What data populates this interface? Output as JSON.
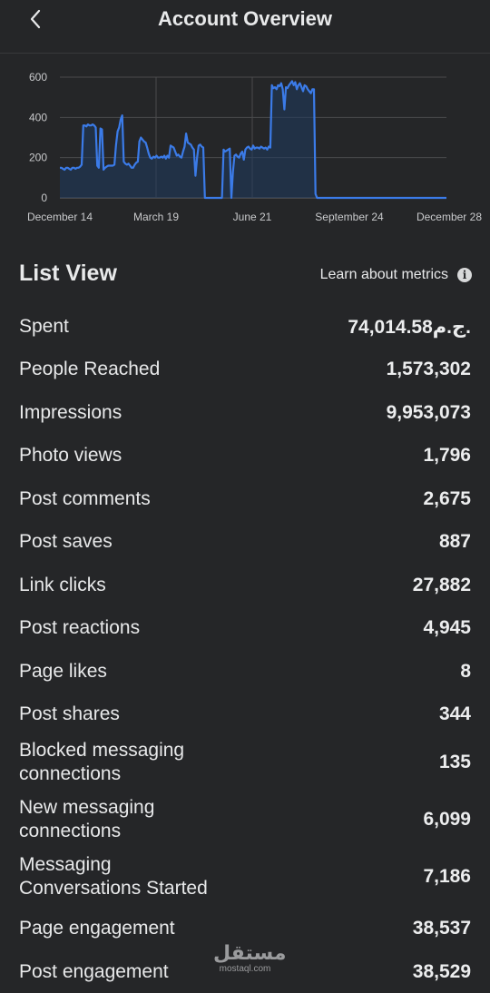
{
  "header": {
    "title": "Account Overview",
    "back_icon": "chevron-left-icon"
  },
  "chart_data": {
    "type": "area",
    "title": "",
    "xlabel": "",
    "ylabel": "",
    "x_tick_labels": [
      "December 14",
      "March 19",
      "June 21",
      "September 24",
      "December 28"
    ],
    "y_ticks": [
      "600",
      "400",
      "200",
      "0"
    ],
    "ylim": [
      0,
      600
    ],
    "grid": true,
    "line_color": "#3b7be8",
    "fill_color": "#1f3a5e",
    "series": [
      {
        "values": [
          150,
          150,
          145,
          140,
          150,
          150,
          145,
          140,
          150,
          150,
          145,
          150,
          150,
          155,
          165,
          360,
          360,
          355,
          365,
          360,
          360,
          365,
          360,
          350,
          160,
          150,
          345,
          340,
          140,
          150,
          155,
          160,
          160,
          160,
          160,
          165,
          260,
          330,
          350,
          390,
          410,
          180,
          170,
          165,
          170,
          160,
          150,
          150,
          165,
          175,
          180,
          280,
          300,
          290,
          280,
          275,
          250,
          220,
          200,
          195,
          205,
          200,
          210,
          200,
          200,
          205,
          200,
          210,
          195,
          210,
          200,
          260,
          255,
          250,
          230,
          210,
          215,
          205,
          200,
          230,
          255,
          320,
          275,
          270,
          265,
          250,
          240,
          110,
          200,
          260,
          265,
          255,
          250,
          0,
          0,
          0,
          0,
          0,
          0,
          0,
          0,
          0,
          0,
          0,
          0,
          240,
          230,
          235,
          240,
          245,
          0,
          130,
          210,
          215,
          205,
          200,
          220,
          230,
          190,
          240,
          250,
          255,
          245,
          240,
          260,
          245,
          250,
          250,
          245,
          255,
          250,
          245,
          250,
          240,
          255,
          250,
          560,
          545,
          550,
          540,
          560,
          555,
          570,
          540,
          440,
          550,
          545,
          560,
          570,
          580,
          560,
          575,
          540,
          560,
          570,
          550,
          530,
          560,
          555,
          540,
          530,
          520,
          540,
          540,
          20,
          0,
          0,
          0,
          0,
          0,
          0,
          0,
          0,
          0,
          0,
          0,
          0,
          0,
          0,
          0,
          0,
          0,
          0,
          0,
          0,
          0,
          0,
          0,
          0,
          0,
          0,
          0,
          0,
          0,
          0,
          0,
          0,
          0,
          0,
          0,
          0,
          0,
          0,
          0,
          0,
          0,
          0,
          0,
          0,
          0,
          0,
          0,
          0,
          0,
          0,
          0,
          0,
          0,
          0,
          0,
          0,
          0,
          0,
          0,
          0,
          0,
          0,
          0,
          0,
          0,
          0,
          0,
          0,
          0,
          0,
          0,
          0,
          0,
          0,
          0,
          0,
          0,
          0,
          0,
          0,
          0,
          0,
          0,
          0
        ]
      }
    ]
  },
  "list_view": {
    "title": "List View",
    "learn_label": "Learn about metrics",
    "info_icon": "info-icon",
    "metrics": [
      {
        "label": "Spent",
        "value": "74,014.58ج.م."
      },
      {
        "label": "People Reached",
        "value": "1,573,302"
      },
      {
        "label": "Impressions",
        "value": "9,953,073"
      },
      {
        "label": "Photo views",
        "value": "1,796"
      },
      {
        "label": "Post comments",
        "value": "2,675"
      },
      {
        "label": "Post saves",
        "value": "887"
      },
      {
        "label": "Link clicks",
        "value": "27,882"
      },
      {
        "label": "Post reactions",
        "value": "4,945"
      },
      {
        "label": "Page likes",
        "value": "8"
      },
      {
        "label": "Post shares",
        "value": "344"
      },
      {
        "label": "Blocked messaging connections",
        "value": "135"
      },
      {
        "label": "New messaging connections",
        "value": "6,099"
      },
      {
        "label": "Messaging Conversations Started",
        "value": "7,186"
      },
      {
        "label": "Page engagement",
        "value": "38,537"
      },
      {
        "label": "Post engagement",
        "value": "38,529"
      }
    ]
  },
  "watermark": {
    "main": "مستقل",
    "sub": "mostaql.com"
  }
}
